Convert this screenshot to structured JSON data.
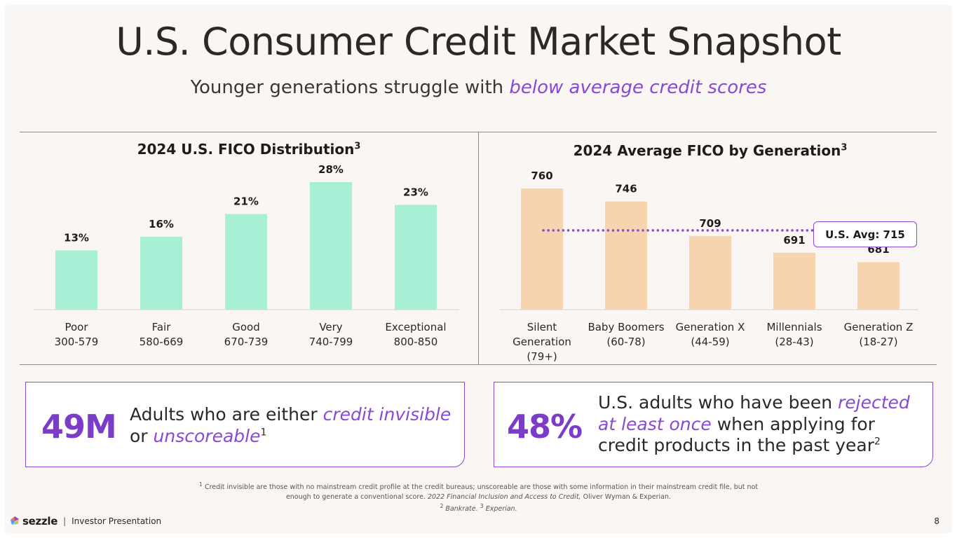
{
  "header": {
    "title": "U.S. Consumer Credit Market Snapshot",
    "subtitle_lead": "Younger generations struggle with ",
    "subtitle_accent": "below average credit scores"
  },
  "colors": {
    "accent": "#8a48d6",
    "fico_bar": "#a7f0d6",
    "gen_bar": "#f7d4ad",
    "background": "#f9f6f3"
  },
  "chart_data": [
    {
      "type": "bar",
      "title": "2024 U.S. FICO Distribution",
      "title_sup": "3",
      "categories": [
        "Poor 300-579",
        "Fair 580-669",
        "Good 670-739",
        "Very 740-799",
        "Exceptional 800-850"
      ],
      "category_lines": [
        [
          "Poor",
          "300-579"
        ],
        [
          "Fair",
          "580-669"
        ],
        [
          "Good",
          "670-739"
        ],
        [
          "Very",
          "740-799"
        ],
        [
          "Exceptional",
          "800-850"
        ]
      ],
      "values": [
        13,
        16,
        21,
        28,
        23
      ],
      "value_labels": [
        "13%",
        "16%",
        "21%",
        "28%",
        "23%"
      ],
      "unit": "%",
      "ylim": [
        0,
        28
      ],
      "grid": false
    },
    {
      "type": "bar",
      "title": "2024 Average FICO by Generation",
      "title_sup": "3",
      "categories": [
        "Silent Generation (79+)",
        "Baby Boomers (60-78)",
        "Generation X (44-59)",
        "Millennials (28-43)",
        "Generation Z (18-27)"
      ],
      "category_lines": [
        [
          "Silent",
          "Generation",
          "(79+)"
        ],
        [
          "Baby Boomers",
          "(60-78)"
        ],
        [
          "Generation X",
          "(44-59)"
        ],
        [
          "Millennials",
          "(28-43)"
        ],
        [
          "Generation Z",
          "(18-27)"
        ]
      ],
      "values": [
        760,
        746,
        709,
        691,
        681
      ],
      "value_labels": [
        "760",
        "746",
        "709",
        "691",
        "681"
      ],
      "reference_line": {
        "value": 715,
        "label": "U.S. Avg: 715",
        "style": "dotted"
      },
      "ylim": [
        630,
        760
      ],
      "grid": false
    }
  ],
  "cards": [
    {
      "number": "49M",
      "text_lead": "Adults who are either ",
      "text_accent1": "credit invisible",
      "text_mid": " or ",
      "text_accent2": "unscoreable",
      "sup": "1"
    },
    {
      "number": "48%",
      "text_lead": "U.S. adults who have been ",
      "text_accent": "rejected at least once",
      "text_tail": " when applying for credit products in the past year",
      "sup": "2"
    }
  ],
  "footnote": {
    "n1": "1",
    "line1": " Credit invisible are those with no mainstream credit profile at the credit bureaus; unscoreable are those with some information in their mainstream credit file, but not enough to generate a conventional score. ",
    "line1_italic": "2022 Financial Inclusion and Access to Credit,",
    "line1_tail": " Oliver Wyman & Experian.",
    "n2": "2",
    "src2": " Bankrate.",
    "n3": "3",
    "src3": " Experian."
  },
  "footer": {
    "logo_text": "sezzle",
    "separator": "|",
    "label": "Investor Presentation",
    "page_number": "8"
  }
}
